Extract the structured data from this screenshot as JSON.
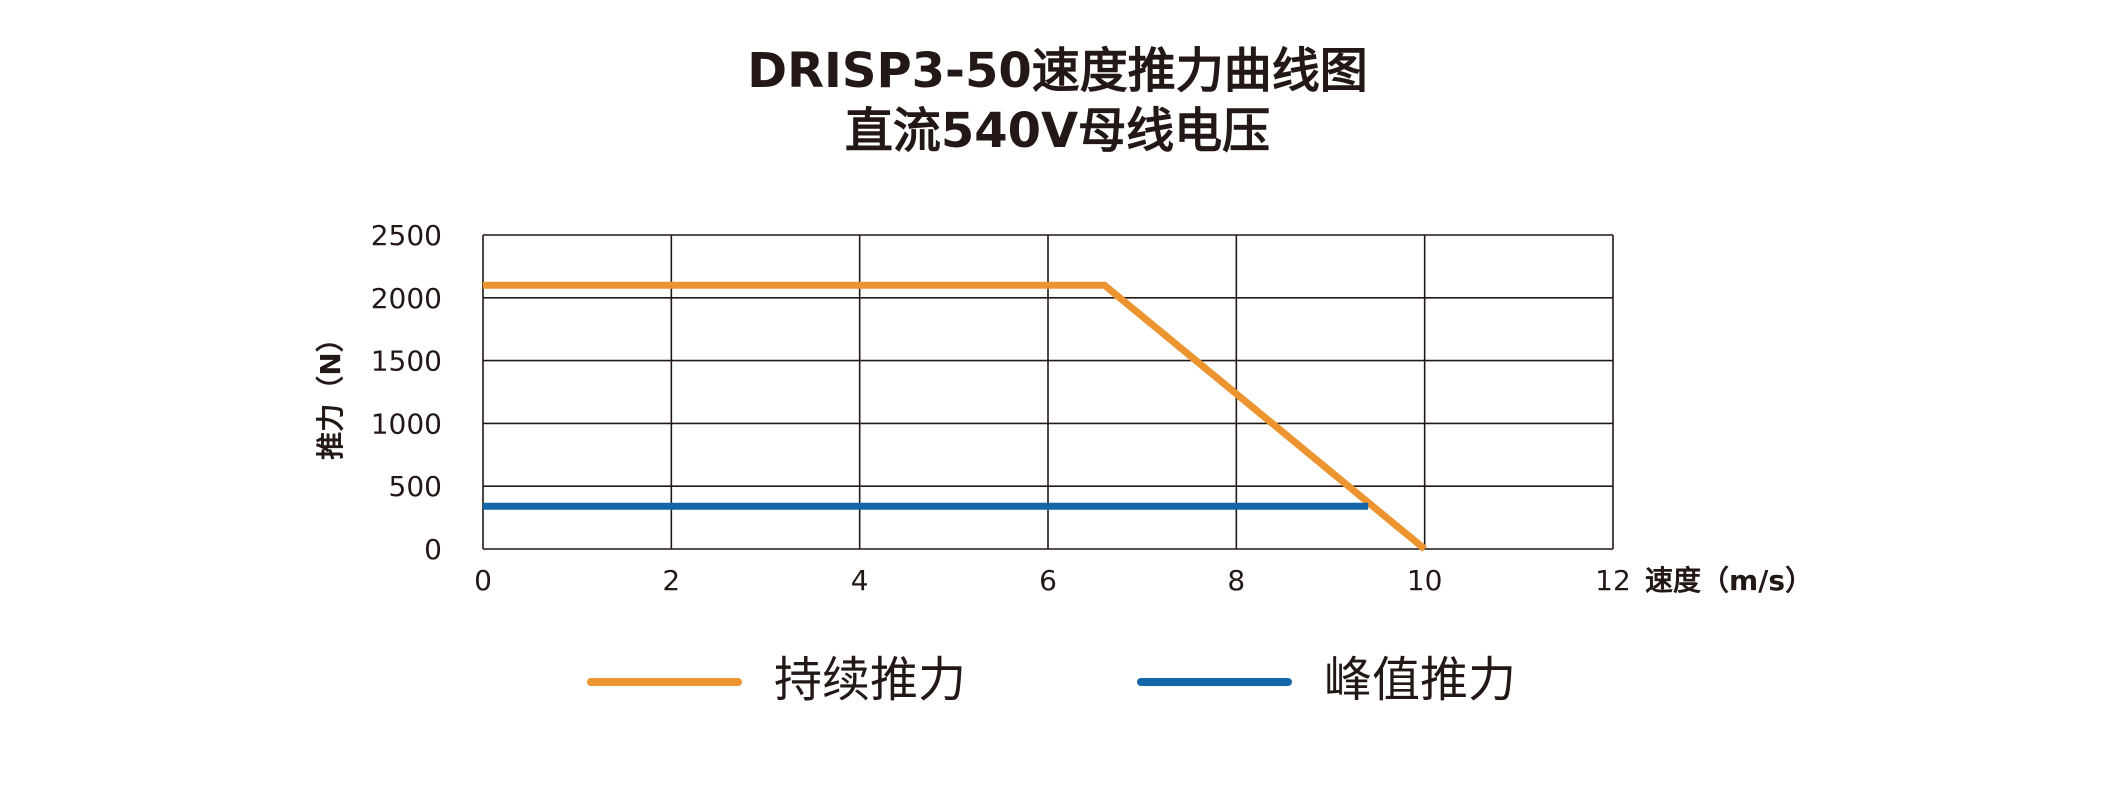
{
  "title_line1": "DRISP3-50速度推力曲线图",
  "title_line2": "直流540V母线电压",
  "chart_data": {
    "type": "line",
    "xlabel": "速度（m/s）",
    "ylabel": "推力（N）",
    "xlim": [
      0,
      12
    ],
    "ylim": [
      0,
      2500
    ],
    "x_ticks": [
      "0",
      "2",
      "4",
      "6",
      "8",
      "10",
      "12"
    ],
    "y_ticks": [
      "0",
      "500",
      "1000",
      "1500",
      "2000",
      "2500"
    ],
    "grid": true,
    "legend_position": "bottom",
    "series": [
      {
        "name": "持续推力",
        "color": "#EB9430",
        "points": [
          {
            "x": 0,
            "y": 2100
          },
          {
            "x": 6.6,
            "y": 2100
          },
          {
            "x": 10,
            "y": 0
          }
        ]
      },
      {
        "name": "峰值推力",
        "color": "#1466A8",
        "points": [
          {
            "x": 0,
            "y": 340
          },
          {
            "x": 9.4,
            "y": 340
          }
        ]
      }
    ]
  },
  "legend": [
    {
      "label": "持续推力",
      "color": "#EB9430"
    },
    {
      "label": "峰值推力",
      "color": "#1466A8"
    }
  ]
}
